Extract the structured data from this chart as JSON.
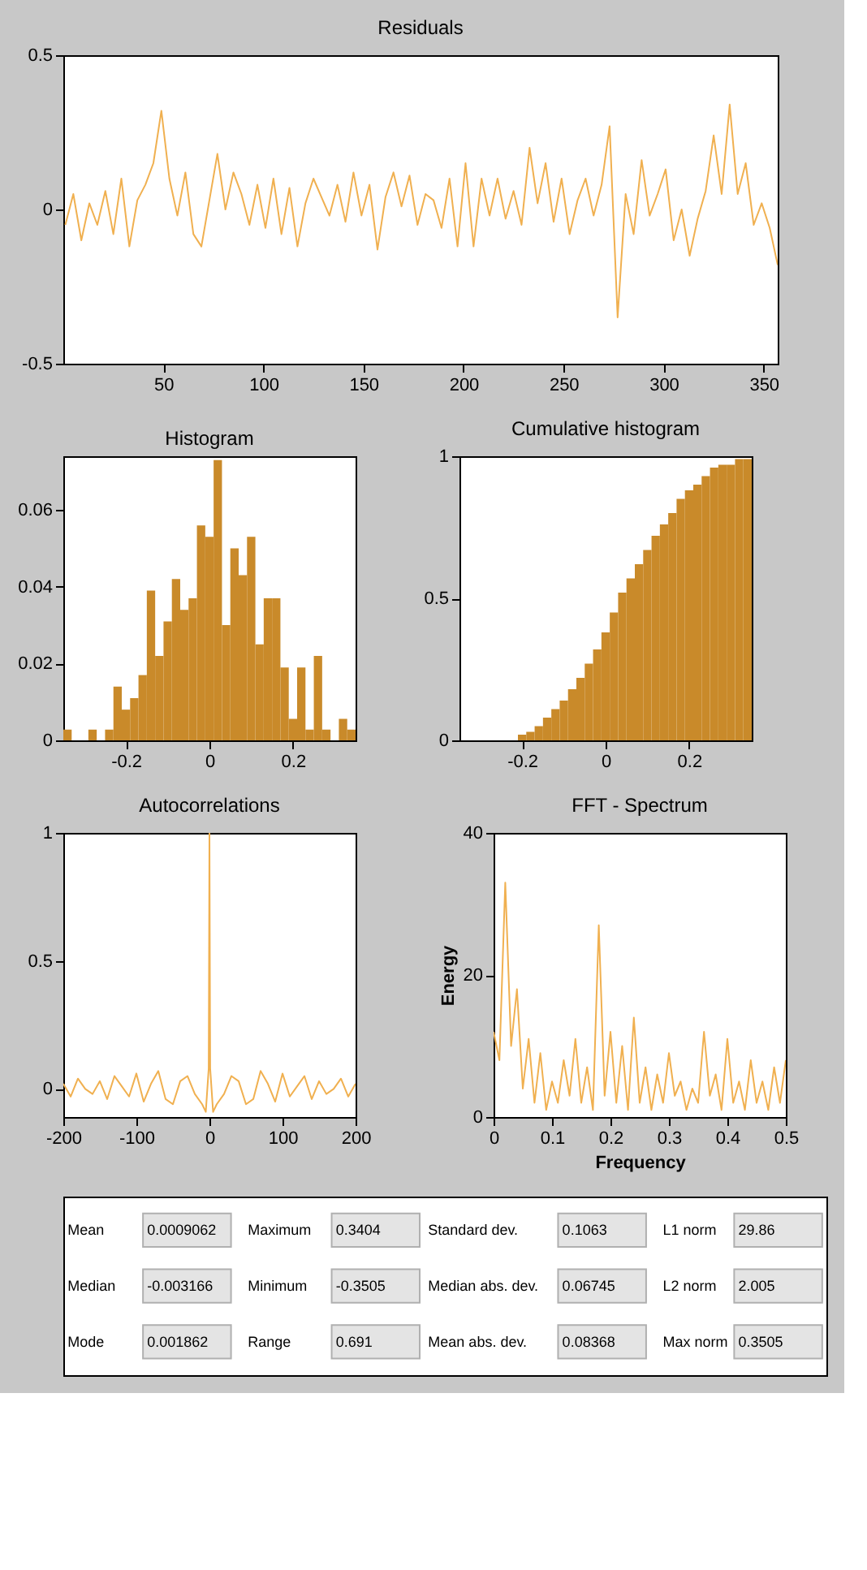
{
  "chart_data": [
    {
      "type": "line",
      "title": "Residuals",
      "color": "#f0b050",
      "xlim": [
        0,
        357
      ],
      "xticks": [
        50,
        100,
        150,
        200,
        250,
        300,
        350
      ],
      "ylim": [
        -0.5,
        0.5
      ],
      "yticks": [
        -0.5,
        0,
        0.5
      ],
      "x": [
        1,
        5,
        9,
        13,
        17,
        21,
        25,
        29,
        33,
        37,
        41,
        45,
        49,
        53,
        57,
        61,
        65,
        69,
        73,
        77,
        81,
        85,
        89,
        93,
        97,
        101,
        105,
        109,
        113,
        117,
        121,
        125,
        129,
        133,
        137,
        141,
        145,
        149,
        153,
        157,
        161,
        165,
        169,
        173,
        177,
        181,
        185,
        189,
        193,
        197,
        201,
        205,
        209,
        213,
        217,
        221,
        225,
        229,
        233,
        237,
        241,
        245,
        249,
        253,
        257,
        261,
        265,
        269,
        273,
        277,
        281,
        285,
        289,
        293,
        297,
        301,
        305,
        309,
        313,
        317,
        321,
        325,
        329,
        333,
        337,
        341,
        345,
        349,
        353,
        357
      ],
      "values": [
        -0.05,
        0.05,
        -0.1,
        0.02,
        -0.05,
        0.06,
        -0.08,
        0.1,
        -0.12,
        0.03,
        0.08,
        0.15,
        0.32,
        0.1,
        -0.02,
        0.12,
        -0.08,
        -0.12,
        0.03,
        0.18,
        0.0,
        0.12,
        0.05,
        -0.05,
        0.08,
        -0.06,
        0.1,
        -0.08,
        0.07,
        -0.12,
        0.02,
        0.1,
        0.04,
        -0.02,
        0.08,
        -0.04,
        0.12,
        -0.02,
        0.08,
        -0.13,
        0.04,
        0.12,
        0.01,
        0.11,
        -0.05,
        0.05,
        0.03,
        -0.06,
        0.1,
        -0.12,
        0.15,
        -0.12,
        0.1,
        -0.02,
        0.1,
        -0.03,
        0.06,
        -0.05,
        0.2,
        0.02,
        0.15,
        -0.04,
        0.1,
        -0.08,
        0.03,
        0.1,
        -0.02,
        0.08,
        0.27,
        -0.35,
        0.05,
        -0.08,
        0.16,
        -0.02,
        0.05,
        0.13,
        -0.1,
        0.0,
        -0.15,
        -0.03,
        0.06,
        0.24,
        0.05,
        0.34,
        0.05,
        0.15,
        -0.05,
        0.02,
        -0.06,
        -0.18
      ]
    },
    {
      "type": "histogram",
      "title": "Histogram",
      "color": "#c98a2a",
      "xlim": [
        -0.35,
        0.35
      ],
      "xticks": [
        -0.2,
        0,
        0.2
      ],
      "ylim": [
        0,
        0.074
      ],
      "yticks": [
        0,
        0.02,
        0.04,
        0.06
      ],
      "bins": [
        -0.35,
        -0.33,
        -0.31,
        -0.29,
        -0.27,
        -0.25,
        -0.23,
        -0.21,
        -0.19,
        -0.17,
        -0.15,
        -0.13,
        -0.11,
        -0.09,
        -0.07,
        -0.05,
        -0.03,
        -0.01,
        0.01,
        0.03,
        0.05,
        0.07,
        0.09,
        0.11,
        0.13,
        0.15,
        0.17,
        0.19,
        0.21,
        0.23,
        0.25,
        0.27,
        0.29,
        0.31,
        0.33,
        0.35
      ],
      "values": [
        0.0028,
        0,
        0,
        0.0028,
        0,
        0.0028,
        0.014,
        0.008,
        0.011,
        0.017,
        0.039,
        0.022,
        0.031,
        0.042,
        0.034,
        0.037,
        0.056,
        0.053,
        0.073,
        0.03,
        0.05,
        0.043,
        0.053,
        0.025,
        0.037,
        0.037,
        0.019,
        0.0056,
        0.019,
        0.0028,
        0.022,
        0.0028,
        0,
        0.0056,
        0.0028
      ]
    },
    {
      "type": "histogram",
      "title": "Cumulative histogram",
      "color": "#c98a2a",
      "xlim": [
        -0.35,
        0.35
      ],
      "xticks": [
        -0.2,
        0,
        0.2
      ],
      "ylim": [
        0,
        1
      ],
      "yticks": [
        0,
        0.5,
        1
      ],
      "bins": [
        -0.35,
        -0.33,
        -0.31,
        -0.29,
        -0.27,
        -0.25,
        -0.23,
        -0.21,
        -0.19,
        -0.17,
        -0.15,
        -0.13,
        -0.11,
        -0.09,
        -0.07,
        -0.05,
        -0.03,
        -0.01,
        0.01,
        0.03,
        0.05,
        0.07,
        0.09,
        0.11,
        0.13,
        0.15,
        0.17,
        0.19,
        0.21,
        0.23,
        0.25,
        0.27,
        0.29,
        0.31,
        0.33,
        0.35
      ],
      "values": [
        0,
        0,
        0,
        0,
        0,
        0,
        0,
        0.02,
        0.03,
        0.05,
        0.08,
        0.11,
        0.14,
        0.18,
        0.22,
        0.27,
        0.32,
        0.38,
        0.45,
        0.52,
        0.57,
        0.62,
        0.67,
        0.72,
        0.76,
        0.8,
        0.85,
        0.88,
        0.9,
        0.93,
        0.96,
        0.97,
        0.97,
        0.99,
        0.99
      ]
    },
    {
      "type": "line",
      "title": "Autocorrelations",
      "color": "#f0b050",
      "xlim": [
        -200,
        200
      ],
      "xticks": [
        -200,
        -100,
        0,
        100,
        200
      ],
      "ylim": [
        -0.11,
        1
      ],
      "yticks": [
        0,
        0.5,
        1
      ],
      "x": [
        -200,
        -190,
        -180,
        -170,
        -160,
        -150,
        -140,
        -130,
        -120,
        -110,
        -100,
        -90,
        -80,
        -70,
        -60,
        -50,
        -40,
        -30,
        -20,
        -10,
        -5,
        -1,
        0,
        1,
        5,
        10,
        20,
        30,
        40,
        50,
        60,
        70,
        80,
        90,
        100,
        110,
        120,
        130,
        140,
        150,
        160,
        170,
        180,
        190,
        200
      ],
      "values": [
        0.02,
        -0.03,
        0.04,
        0.0,
        -0.02,
        0.03,
        -0.04,
        0.05,
        0.01,
        -0.03,
        0.06,
        -0.05,
        0.02,
        0.07,
        -0.04,
        -0.06,
        0.03,
        0.05,
        -0.02,
        -0.06,
        -0.09,
        0.08,
        1,
        0.08,
        -0.09,
        -0.06,
        -0.02,
        0.05,
        0.03,
        -0.06,
        -0.04,
        0.07,
        0.02,
        -0.05,
        0.06,
        -0.03,
        0.01,
        0.05,
        -0.04,
        0.03,
        -0.02,
        0.0,
        0.04,
        -0.03,
        0.02
      ]
    },
    {
      "type": "line",
      "title": "FFT - Spectrum",
      "xlabel": "Frequency",
      "ylabel": "Energy",
      "color": "#f0b050",
      "xlim": [
        0,
        0.5
      ],
      "xticks": [
        0,
        0.1,
        0.2,
        0.3,
        0.4,
        0.5
      ],
      "ylim": [
        0,
        40
      ],
      "yticks": [
        0,
        20,
        40
      ],
      "x": [
        0,
        0.01,
        0.02,
        0.03,
        0.04,
        0.05,
        0.06,
        0.07,
        0.08,
        0.09,
        0.1,
        0.11,
        0.12,
        0.13,
        0.14,
        0.15,
        0.16,
        0.17,
        0.18,
        0.19,
        0.2,
        0.21,
        0.22,
        0.23,
        0.24,
        0.25,
        0.26,
        0.27,
        0.28,
        0.29,
        0.3,
        0.31,
        0.32,
        0.33,
        0.34,
        0.35,
        0.36,
        0.37,
        0.38,
        0.39,
        0.4,
        0.41,
        0.42,
        0.43,
        0.44,
        0.45,
        0.46,
        0.47,
        0.48,
        0.49,
        0.5
      ],
      "values": [
        12,
        8,
        33,
        10,
        18,
        4,
        11,
        2,
        9,
        1,
        5,
        2,
        8,
        3,
        11,
        2,
        7,
        1,
        27,
        3,
        12,
        2,
        10,
        1,
        14,
        2,
        7,
        1,
        6,
        2,
        9,
        3,
        5,
        1,
        4,
        2,
        12,
        3,
        6,
        1,
        11,
        2,
        5,
        1,
        8,
        2,
        5,
        1,
        7,
        2,
        8
      ]
    },
    {
      "type": "other",
      "annotations": [
        "Mean",
        "0.0009062",
        "Maximum",
        "0.3404",
        "Standard dev.",
        "0.1063",
        "L1 norm",
        "29.86",
        "Median",
        "-0.003166",
        "Minimum",
        "-0.3505",
        "Median abs. dev.",
        "0.06745",
        "L2 norm",
        "2.005",
        "Mode",
        "0.001862",
        "Range",
        "0.691",
        "Mean abs. dev.",
        "0.08368",
        "Max norm",
        "0.3505"
      ]
    }
  ]
}
